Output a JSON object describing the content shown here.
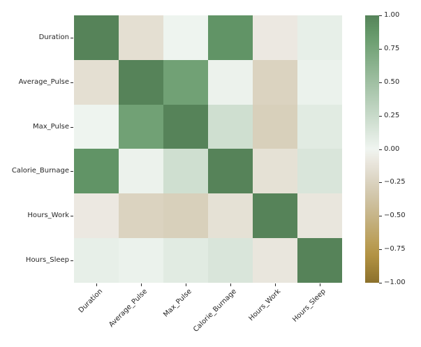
{
  "chart_data": {
    "type": "heatmap",
    "title": "",
    "xlabel": "",
    "ylabel": "",
    "x_categories": [
      "Duration",
      "Average_Pulse",
      "Max_Pulse",
      "Calorie_Burnage",
      "Hours_Work",
      "Hours_Sleep"
    ],
    "y_categories": [
      "Duration",
      "Average_Pulse",
      "Max_Pulse",
      "Calorie_Burnage",
      "Hours_Work",
      "Hours_Sleep"
    ],
    "matrix": [
      [
        1.0,
        -0.155408,
        0.009403,
        0.891598,
        -0.08052,
        0.053696
      ],
      [
        -0.155408,
        1.0,
        0.786535,
        0.02512,
        -0.243528,
        0.02816
      ],
      [
        0.009403,
        0.786535,
        1.0,
        0.203813,
        -0.270449,
        0.092732
      ],
      [
        0.891598,
        0.02512,
        0.203813,
        1.0,
        -0.139605,
        0.143334
      ],
      [
        -0.08052,
        -0.243528,
        -0.270449,
        -0.139605,
        1.0,
        -0.101422
      ],
      [
        0.053696,
        0.02816,
        0.092732,
        0.143334,
        -0.101422,
        1.0
      ]
    ],
    "vmin": -1,
    "vmax": 1,
    "grid": false,
    "legend_position": "right-colorbar",
    "colormap": {
      "name": "diverging brown-green",
      "positive_end": "#568459",
      "center": "#f1f2ec",
      "negative_end": "#8c712c"
    },
    "colorbar_tick_labels": [
      "1.00",
      "0.75",
      "0.50",
      "0.25",
      "0.00",
      "−0.25",
      "−0.50",
      "−0.75",
      "−1.00"
    ],
    "colorbar_tick_values": [
      1.0,
      0.75,
      0.5,
      0.25,
      0.0,
      -0.25,
      -0.5,
      -0.75,
      -1.0
    ]
  },
  "layout_hints": {
    "x_tick_rotation_degrees": 45,
    "square_cells": true
  }
}
